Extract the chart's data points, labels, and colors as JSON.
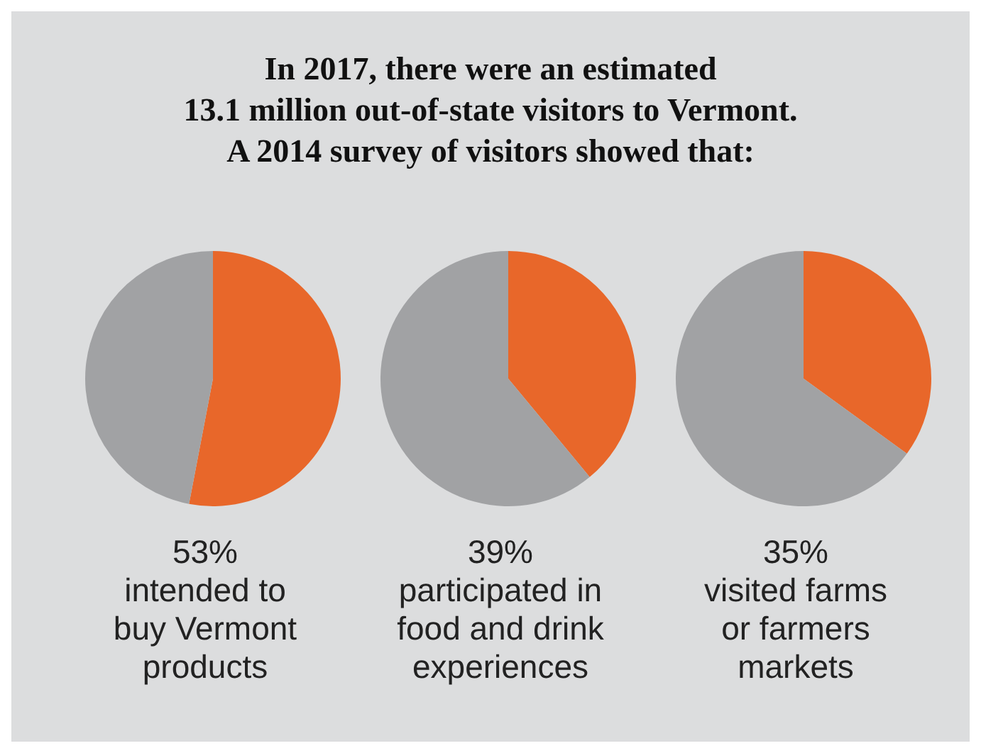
{
  "chart_data": [
    {
      "type": "pie",
      "title": "In 2017, there were an estimated\n13.1 million out-of-state visitors to Vermont.\nA 2014 survey of visitors showed that:",
      "categories": [
        null,
        null
      ],
      "values": [
        53,
        47
      ],
      "colors": [
        "#e8672a",
        "#a1a2a4"
      ],
      "annotations": [
        "53%",
        "intended to buy Vermont products"
      ]
    },
    {
      "type": "pie",
      "categories": [
        null,
        null
      ],
      "values": [
        39,
        61
      ],
      "colors": [
        "#e8672a",
        "#a1a2a4"
      ],
      "annotations": [
        "39%",
        "participated in food and drink experiences"
      ]
    },
    {
      "type": "pie",
      "categories": [
        null,
        null
      ],
      "values": [
        35,
        65
      ],
      "colors": [
        "#e8672a",
        "#a1a2a4"
      ],
      "annotations": [
        "35%",
        "visited farms or farmers markets"
      ]
    }
  ]
}
